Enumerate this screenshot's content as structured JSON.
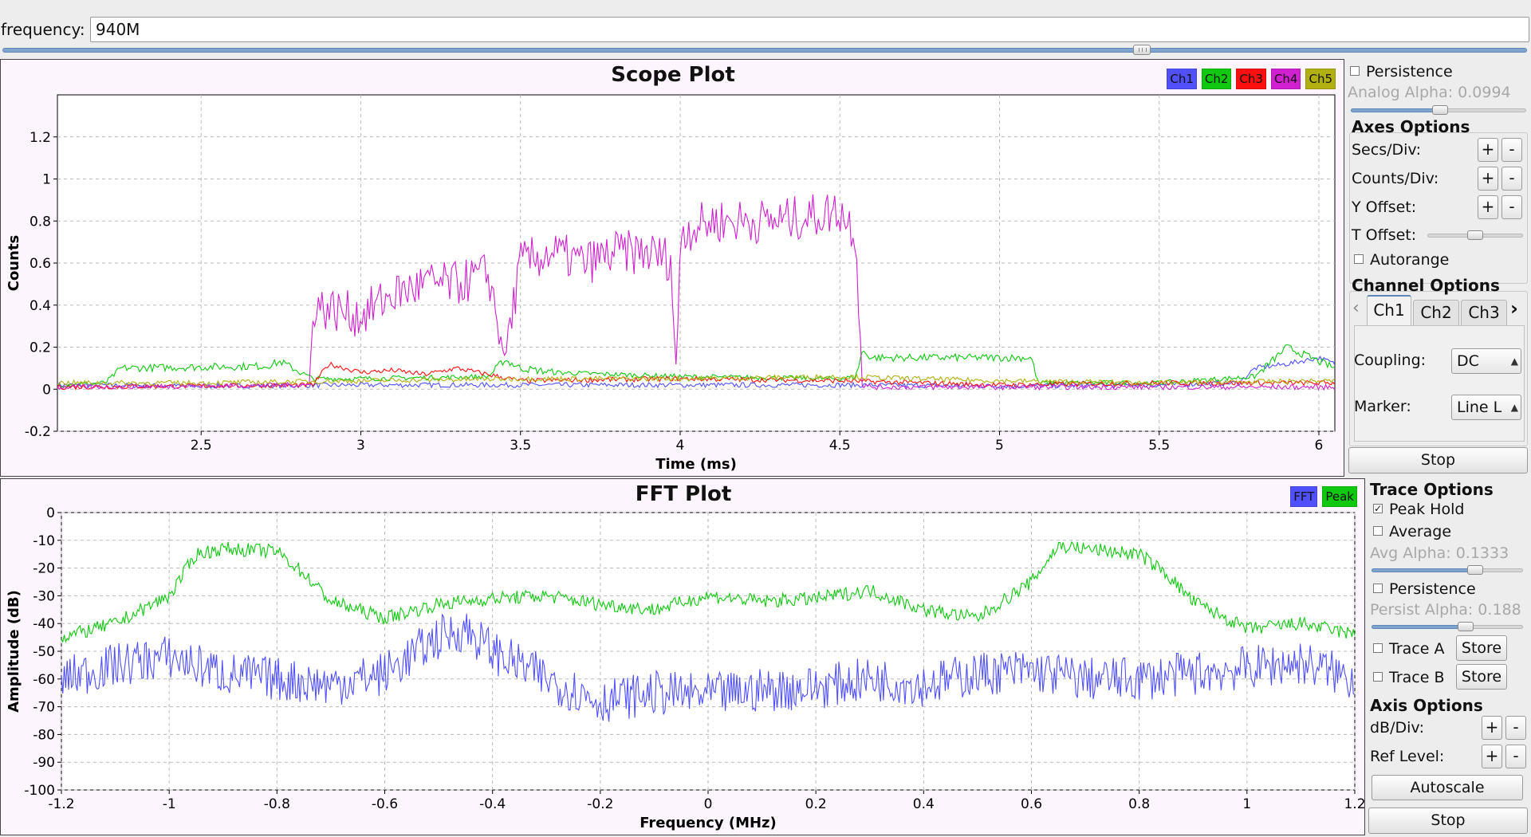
{
  "frequency": {
    "label": "frequency:",
    "value": "940M",
    "slider_fraction": 0.745
  },
  "scope": {
    "legend": [
      {
        "label": "Ch1",
        "color": "#5050ff"
      },
      {
        "label": "Ch2",
        "color": "#10c810"
      },
      {
        "label": "Ch3",
        "color": "#ff1010"
      },
      {
        "label": "Ch4",
        "color": "#d020d0"
      },
      {
        "label": "Ch5",
        "color": "#b0b010"
      }
    ],
    "side": {
      "persistence_label": "Persistence",
      "analog_alpha_label": "Analog Alpha: 0.0994",
      "axes_options_title": "Axes Options",
      "secs_div_label": "Secs/Div:",
      "counts_div_label": "Counts/Div:",
      "y_offset_label": "Y Offset:",
      "t_offset_label": "T Offset:",
      "autorange_label": "Autorange",
      "channel_options_title": "Channel Options",
      "tabs": [
        "Ch1",
        "Ch2",
        "Ch3"
      ],
      "tab_prev": "‹",
      "tab_next": "›",
      "coupling_label": "Coupling:",
      "coupling_value": "DC",
      "marker_label": "Marker:",
      "marker_value": "Line L",
      "plus": "+",
      "minus": "-",
      "stop_label": "Stop"
    }
  },
  "fft": {
    "legend": [
      {
        "label": "FFT",
        "color": "#5050ff"
      },
      {
        "label": "Peak",
        "color": "#10c810"
      }
    ],
    "side": {
      "trace_options_title": "Trace Options",
      "peak_hold_label": "Peak Hold",
      "average_label": "Average",
      "avg_alpha_label": "Avg Alpha: 0.1333",
      "persistence_label": "Persistence",
      "persist_alpha_label": "Persist Alpha: 0.188",
      "trace_a_label": "Trace A",
      "trace_b_label": "Trace B",
      "store_label": "Store",
      "axis_options_title": "Axis Options",
      "db_div_label": "dB/Div:",
      "ref_level_label": "Ref Level:",
      "plus": "+",
      "minus": "-",
      "autoscale_label": "Autoscale",
      "stop_label": "Stop"
    }
  },
  "chart_data": [
    {
      "type": "line",
      "title": "Scope Plot",
      "xlabel": "Time (ms)",
      "ylabel": "Counts",
      "xlim": [
        2.05,
        6.05
      ],
      "ylim": [
        -0.2,
        1.4
      ],
      "xticks": [
        2.5,
        3,
        3.5,
        4,
        4.5,
        5,
        5.5,
        6
      ],
      "xtick_labels": [
        "2.5",
        "3",
        "3.5",
        "4",
        "4.5",
        "5",
        "5.5",
        "6"
      ],
      "yticks": [
        -0.2,
        0,
        0.2,
        0.4,
        0.6,
        0.8,
        1,
        1.2
      ],
      "ytick_labels": [
        "-0.2",
        "0",
        "0.2",
        "0.4",
        "0.6",
        "0.8",
        "1",
        "1.2"
      ],
      "grid": true,
      "legend_position": "top-right",
      "series": [
        {
          "name": "Ch1",
          "color": "#5050ff",
          "x": [
            2.05,
            2.5,
            3.0,
            3.5,
            4.0,
            4.5,
            5.0,
            5.5,
            5.75,
            5.8,
            5.9,
            6.0,
            6.05
          ],
          "y": [
            0.02,
            0.015,
            0.02,
            0.02,
            0.02,
            0.02,
            0.015,
            0.02,
            0.03,
            0.1,
            0.12,
            0.15,
            0.12
          ]
        },
        {
          "name": "Ch2",
          "color": "#10c810",
          "x": [
            2.05,
            2.2,
            2.25,
            2.7,
            2.75,
            2.85,
            3.0,
            3.4,
            3.45,
            3.5,
            3.6,
            4.0,
            4.5,
            4.55,
            4.57,
            4.6,
            5.0,
            5.1,
            5.12,
            5.5,
            5.8,
            5.9,
            6.05
          ],
          "y": [
            0.02,
            0.03,
            0.1,
            0.11,
            0.13,
            0.05,
            0.05,
            0.06,
            0.14,
            0.1,
            0.08,
            0.06,
            0.05,
            0.06,
            0.18,
            0.15,
            0.15,
            0.15,
            0.03,
            0.03,
            0.06,
            0.2,
            0.1
          ]
        },
        {
          "name": "Ch3",
          "color": "#ff1010",
          "x": [
            2.05,
            2.85,
            2.9,
            3.0,
            3.1,
            3.2,
            3.3,
            3.5,
            4.0,
            4.5,
            5.0,
            5.5,
            6.05
          ],
          "y": [
            0.01,
            0.02,
            0.12,
            0.08,
            0.09,
            0.07,
            0.1,
            0.04,
            0.05,
            0.04,
            0.02,
            0.03,
            0.03
          ]
        },
        {
          "name": "Ch4",
          "color": "#d020d0",
          "x": [
            2.05,
            2.84,
            2.85,
            3.0,
            3.1,
            3.2,
            3.3,
            3.4,
            3.45,
            3.5,
            3.6,
            3.7,
            3.8,
            3.9,
            3.97,
            3.99,
            4.0,
            4.1,
            4.2,
            4.3,
            4.4,
            4.5,
            4.55,
            4.57,
            4.6,
            5.0,
            5.5,
            6.05
          ],
          "y": [
            0.01,
            0.02,
            0.4,
            0.35,
            0.45,
            0.5,
            0.5,
            0.55,
            0.15,
            0.6,
            0.65,
            0.6,
            0.65,
            0.65,
            0.62,
            0.03,
            0.75,
            0.8,
            0.8,
            0.8,
            0.82,
            0.85,
            0.75,
            0.02,
            0.01,
            0.01,
            0.01,
            0.01
          ]
        },
        {
          "name": "Ch5",
          "color": "#b0b010",
          "x": [
            2.05,
            2.5,
            3.0,
            3.5,
            4.0,
            4.5,
            5.0,
            5.5,
            6.05
          ],
          "y": [
            0.03,
            0.03,
            0.04,
            0.05,
            0.05,
            0.06,
            0.04,
            0.03,
            0.04
          ]
        }
      ]
    },
    {
      "type": "line",
      "title": "FFT Plot",
      "xlabel": "Frequency (MHz)",
      "ylabel": "Amplitude (dB)",
      "xlim": [
        -1.2,
        1.2
      ],
      "ylim": [
        -100,
        0
      ],
      "xticks": [
        -1.2,
        -1,
        -0.8,
        -0.6,
        -0.4,
        -0.2,
        0,
        0.2,
        0.4,
        0.6,
        0.8,
        1,
        1.2
      ],
      "xtick_labels": [
        "-1.2",
        "-1",
        "-0.8",
        "-0.6",
        "-0.4",
        "-0.2",
        "0",
        "0.2",
        "0.4",
        "0.6",
        "0.8",
        "1",
        "1.2"
      ],
      "yticks": [
        0,
        -10,
        -20,
        -30,
        -40,
        -50,
        -60,
        -70,
        -80,
        -90,
        -100
      ],
      "ytick_labels": [
        "0",
        "-10",
        "-20",
        "-30",
        "-40",
        "-50",
        "-60",
        "-70",
        "-80",
        "-90",
        "-100"
      ],
      "grid": true,
      "legend_position": "top-right",
      "series": [
        {
          "name": "FFT",
          "color": "#5050ff",
          "x": [
            -1.2,
            -1.1,
            -1.0,
            -0.9,
            -0.8,
            -0.7,
            -0.6,
            -0.5,
            -0.45,
            -0.4,
            -0.3,
            -0.2,
            -0.1,
            0.0,
            0.1,
            0.2,
            0.3,
            0.4,
            0.5,
            0.6,
            0.7,
            0.8,
            0.9,
            1.0,
            1.1,
            1.2
          ],
          "y": [
            -60,
            -55,
            -52,
            -58,
            -60,
            -62,
            -58,
            -45,
            -42,
            -50,
            -60,
            -68,
            -65,
            -66,
            -64,
            -63,
            -60,
            -62,
            -58,
            -57,
            -60,
            -60,
            -58,
            -56,
            -54,
            -60
          ]
        },
        {
          "name": "Peak",
          "color": "#10c810",
          "x": [
            -1.2,
            -1.1,
            -1.0,
            -0.95,
            -0.9,
            -0.8,
            -0.75,
            -0.7,
            -0.6,
            -0.5,
            -0.4,
            -0.3,
            -0.2,
            -0.1,
            0.0,
            0.1,
            0.2,
            0.3,
            0.4,
            0.5,
            0.6,
            0.65,
            0.7,
            0.8,
            0.85,
            0.9,
            1.0,
            1.1,
            1.2
          ],
          "y": [
            -45,
            -40,
            -30,
            -15,
            -13,
            -14,
            -22,
            -32,
            -38,
            -33,
            -31,
            -30,
            -33,
            -35,
            -30,
            -32,
            -31,
            -28,
            -35,
            -38,
            -25,
            -12,
            -13,
            -15,
            -22,
            -32,
            -42,
            -40,
            -44
          ]
        }
      ]
    }
  ]
}
